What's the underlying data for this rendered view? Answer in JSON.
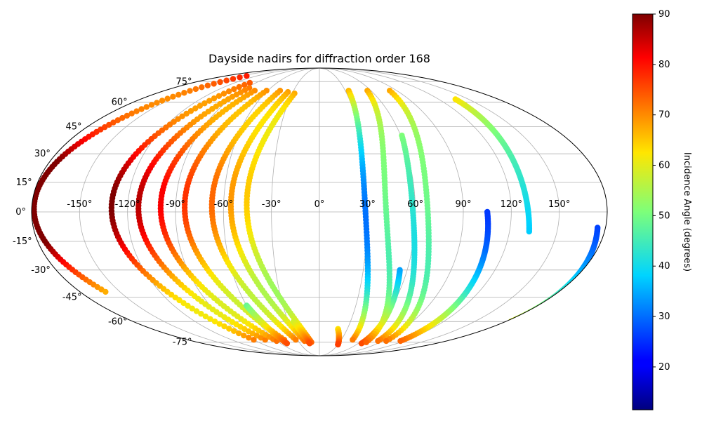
{
  "chart_data": {
    "type": "scatter",
    "projection": "mollweide",
    "title": "Dayside nadirs for diffraction order 168",
    "grid": true,
    "longitude_ticks": [
      -150,
      -120,
      -90,
      -60,
      -30,
      0,
      30,
      60,
      90,
      120,
      150
    ],
    "longitude_tick_labels": [
      "-150°",
      "-120°",
      "-90°",
      "-60°",
      "-30°",
      "0°",
      "30°",
      "60°",
      "90°",
      "120°",
      "150°"
    ],
    "latitude_ticks": [
      -75,
      -60,
      -45,
      -30,
      -15,
      0,
      15,
      30,
      45,
      60,
      75
    ],
    "latitude_tick_labels": [
      "-75°",
      "-60°",
      "-45°",
      "-30°",
      "-15°",
      "0°",
      "15°",
      "30°",
      "45°",
      "60°",
      "75°"
    ],
    "colorbar": {
      "label": "Incidence Angle (degrees)",
      "colormap": "jet",
      "vmin": 11.5,
      "vmax": 90,
      "ticks": [
        20,
        30,
        40,
        50,
        60,
        70,
        80,
        90
      ],
      "tick_labels": [
        "20",
        "30",
        "40",
        "50",
        "60",
        "70",
        "80",
        "90"
      ]
    },
    "tracks": [
      {
        "lon_c": -130,
        "lat_start": 80,
        "lat_end": -42,
        "amp": 55
      },
      {
        "lon_c": -85,
        "lat_start": 74,
        "lat_end": -73,
        "amp": 50
      },
      {
        "lon_c": -70,
        "lat_start": 70,
        "lat_end": -73,
        "amp": 48
      },
      {
        "lon_c": -58,
        "lat_start": 68,
        "lat_end": -74,
        "amp": 46
      },
      {
        "lon_c": -45,
        "lat_start": 68,
        "lat_end": -73,
        "amp": 44
      },
      {
        "lon_c": -30,
        "lat_start": 68,
        "lat_end": -73,
        "amp": 42
      },
      {
        "lon_c": -20,
        "lat_start": 67,
        "lat_end": -74,
        "amp": 40
      },
      {
        "lon_c": -12,
        "lat_start": 66,
        "lat_end": -75,
        "amp": 38
      },
      {
        "lon_c": -60,
        "lat_start": -50,
        "lat_end": -76,
        "amp": 0
      },
      {
        "lon_c": -25,
        "lat_start": -60,
        "lat_end": -76,
        "amp": 0
      },
      {
        "lon_c": 20,
        "lat_start": -65,
        "lat_end": -77,
        "amp": 0
      },
      {
        "lon_c": 40,
        "lat_start": 68,
        "lat_end": -73,
        "amp": 16
      },
      {
        "lon_c": 55,
        "lat_start": -30,
        "lat_end": -76,
        "amp": 0
      },
      {
        "lon_c": 67,
        "lat_start": 68,
        "lat_end": -75,
        "amp": 30
      },
      {
        "lon_c": 80,
        "lat_start": 40,
        "lat_end": -74,
        "amp": 25
      },
      {
        "lon_c": 93,
        "lat_start": 68,
        "lat_end": -74,
        "amp": 30
      },
      {
        "lon_c": 105,
        "lat_start": 0,
        "lat_end": -74,
        "amp": 0
      },
      {
        "lon_c": 150,
        "lat_start": 62,
        "lat_end": -10,
        "amp": 28
      },
      {
        "lon_c": 175,
        "lat_start": -8,
        "lat_end": -60,
        "amp": 0
      }
    ]
  }
}
